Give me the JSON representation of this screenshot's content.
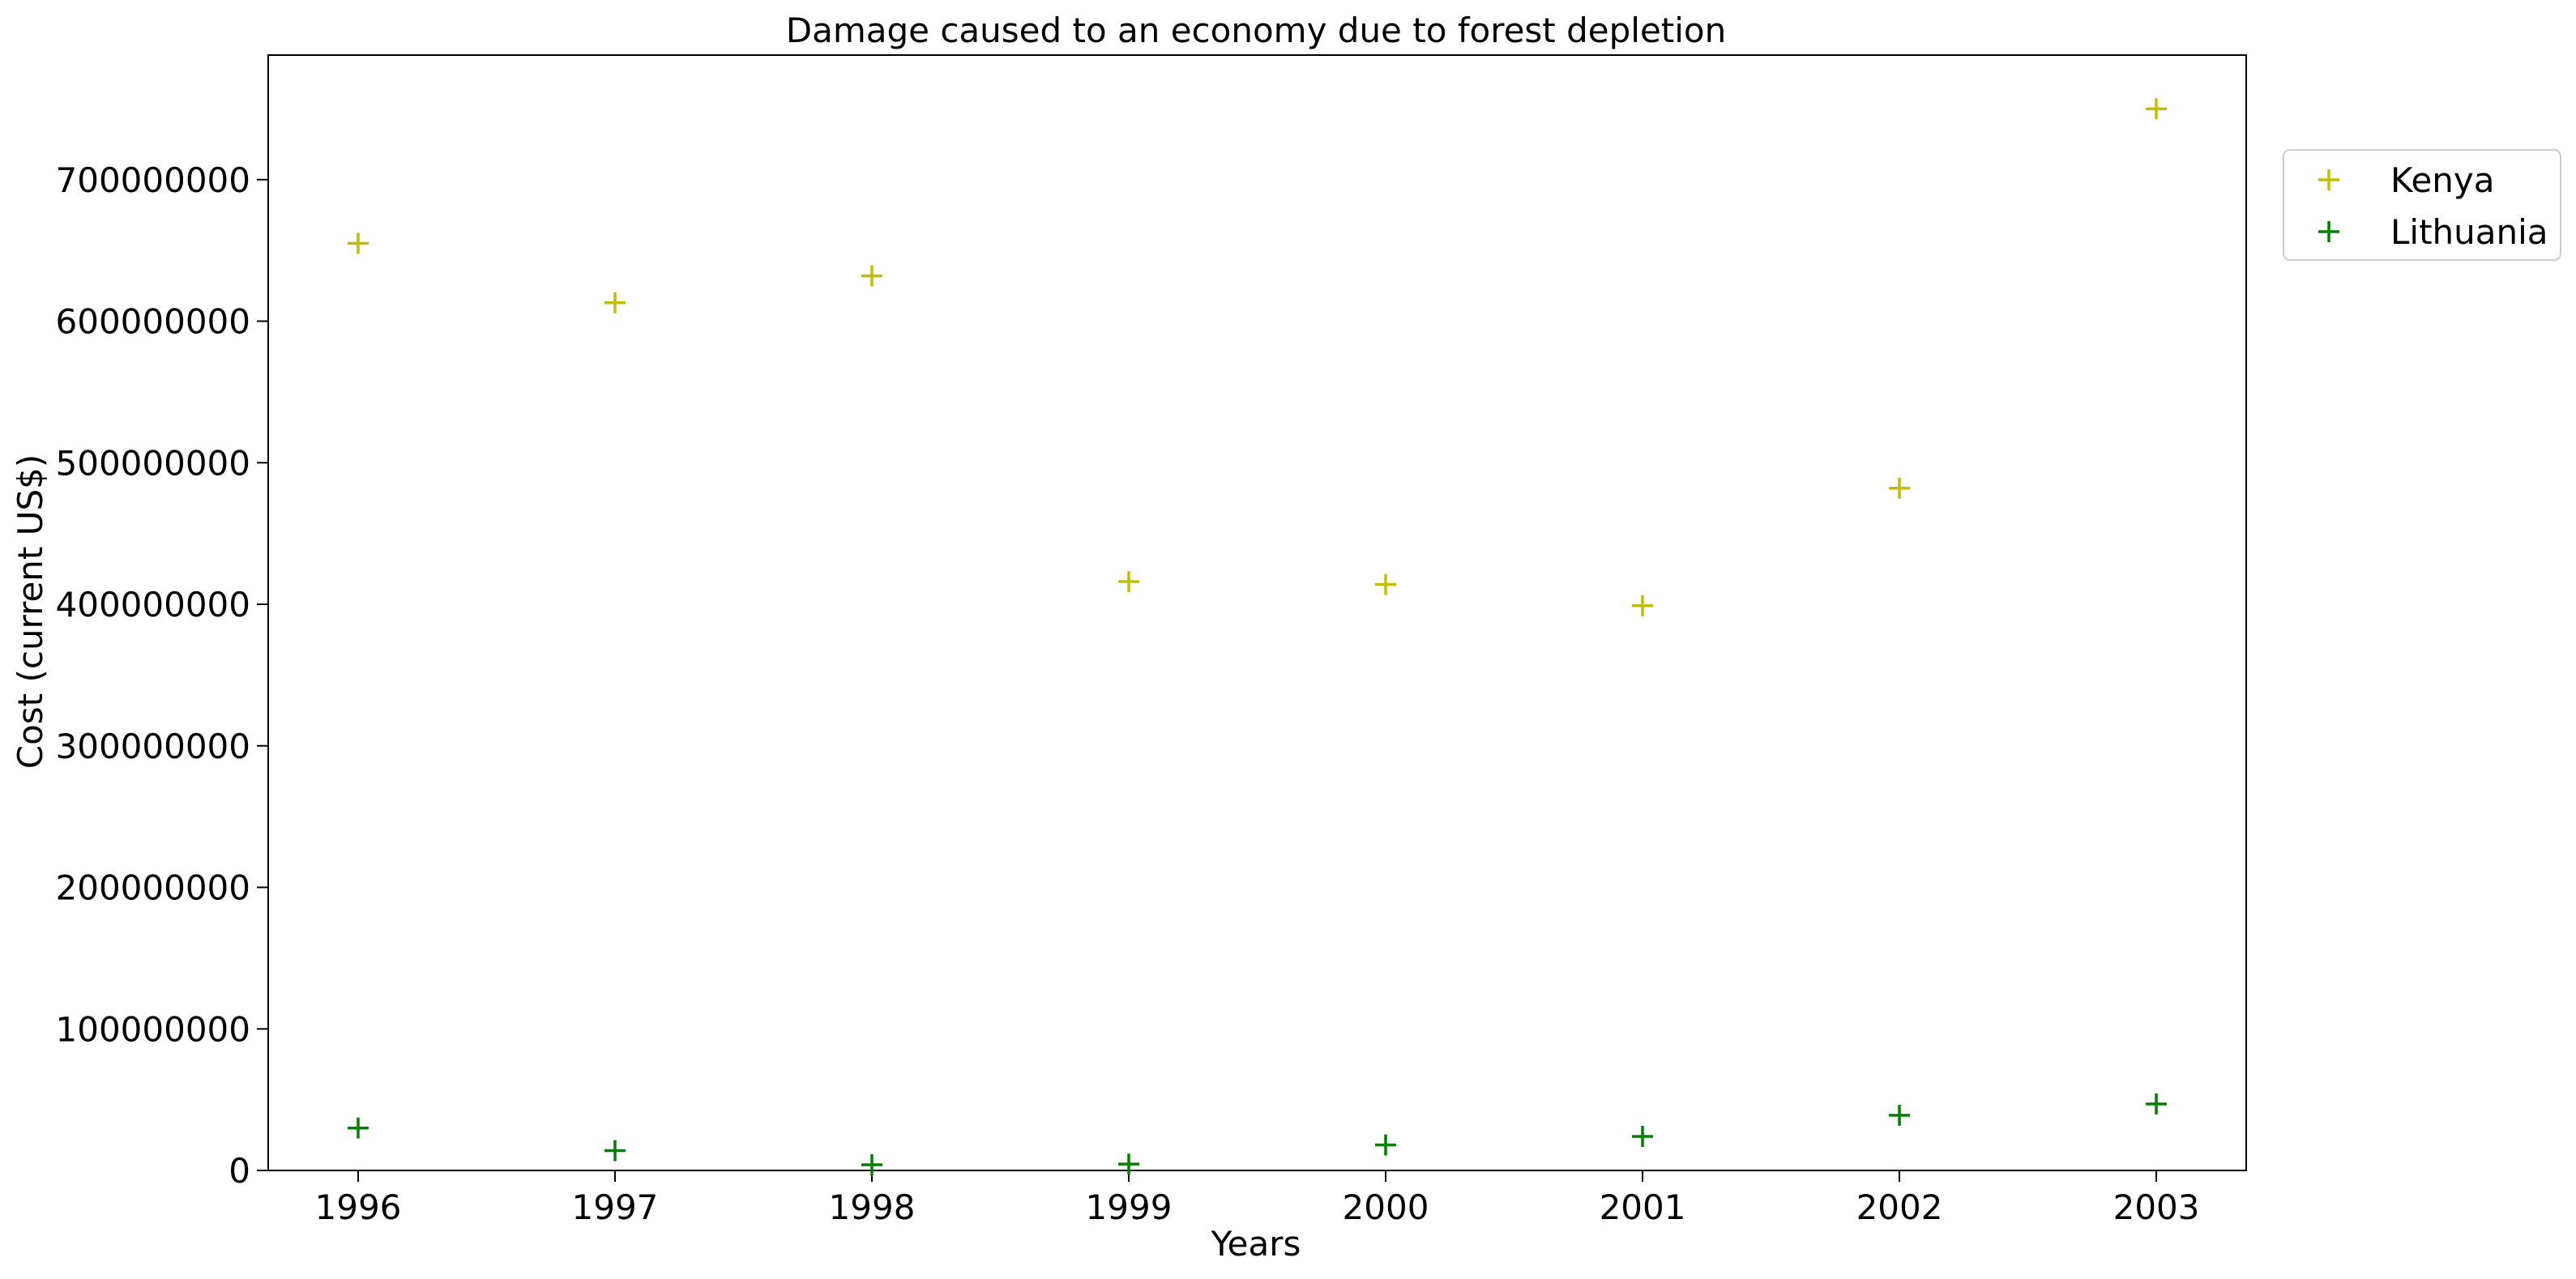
{
  "chart_data": {
    "type": "scatter",
    "title": "Damage caused to an economy due to forest depletion",
    "xlabel": "Years",
    "ylabel": "Cost (current US$)",
    "x": [
      1996,
      1997,
      1998,
      1999,
      2000,
      2001,
      2002,
      2003
    ],
    "x_tick_labels": [
      "1996",
      "1997",
      "1998",
      "1999",
      "2000",
      "2001",
      "2002",
      "2003"
    ],
    "y_ticks": [
      0,
      100000000,
      200000000,
      300000000,
      400000000,
      500000000,
      600000000,
      700000000
    ],
    "y_tick_labels": [
      "0",
      "100000000",
      "200000000",
      "300000000",
      "400000000",
      "500000000",
      "600000000",
      "700000000"
    ],
    "xlim": [
      1995.65,
      2003.35
    ],
    "ylim": [
      0,
      788000000
    ],
    "marker": "+",
    "grid": false,
    "legend_position": "outside-top-right",
    "series": [
      {
        "name": "Kenya",
        "color": "#bfbf00",
        "values": [
          655000000,
          613000000,
          632000000,
          416000000,
          414000000,
          399000000,
          482000000,
          750000000
        ]
      },
      {
        "name": "Lithuania",
        "color": "#008000",
        "values": [
          30000000,
          14000000,
          4000000,
          4500000,
          18000000,
          24000000,
          39000000,
          47000000
        ]
      }
    ]
  }
}
